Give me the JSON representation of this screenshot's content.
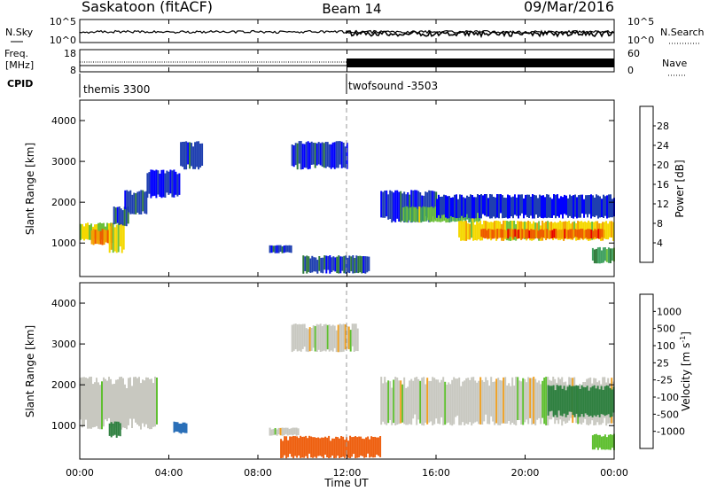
{
  "header": {
    "station": "Saskatoon (fitACF)",
    "beam": "Beam 14",
    "date": "09/Mar/2016"
  },
  "noise_panel": {
    "left_label": "N.Sky",
    "right_label": "N.Search",
    "left_ticks": [
      "10^5",
      "10^0"
    ],
    "right_ticks": [
      "10^5",
      "10^0"
    ]
  },
  "freq_panel": {
    "left_label_line1": "Freq.",
    "left_label_line2": "[MHz]",
    "right_label": "Nave",
    "left_ticks": [
      "18",
      "8"
    ],
    "right_ticks": [
      "60",
      "0"
    ]
  },
  "cpid": {
    "label": "CPID",
    "programs": [
      {
        "name": "themis 3300",
        "start_hour": 0
      },
      {
        "name": "twofsound -3503",
        "start_hour": 12
      }
    ]
  },
  "power_panel": {
    "ylabel": "Slant Range [km]",
    "yticks": [
      "1000",
      "2000",
      "3000",
      "4000"
    ],
    "colorbar_label": "Power [dB]",
    "colorbar_ticks": [
      "4",
      "8",
      "12",
      "16",
      "20",
      "24",
      "28"
    ],
    "colors": [
      "#0000ff",
      "#1f3fb0",
      "#2f7a3a",
      "#3fa060",
      "#6ec03a",
      "#f5d800",
      "#f2a000",
      "#ee5800",
      "#e80000"
    ]
  },
  "velocity_panel": {
    "ylabel": "Slant Range [km]",
    "yticks": [
      "1000",
      "2000",
      "3000",
      "4000"
    ],
    "colorbar_label": "Velocity [m s",
    "colorbar_superscript": "-1",
    "colorbar_label_end": "]",
    "colorbar_ticks": [
      "1000",
      "500",
      "100",
      "25",
      "-25",
      "-100",
      "-500",
      "-1000"
    ],
    "colors": [
      "#1c3fb0",
      "#2a6fb8",
      "#2f8040",
      "#5fbf30",
      "#c8c8c0",
      "#c8c8c0",
      "#f0a020",
      "#ee6010",
      "#e02000"
    ]
  },
  "xaxis": {
    "label": "Time UT",
    "ticks": [
      "00:00",
      "04:00",
      "08:00",
      "12:00",
      "16:00",
      "20:00",
      "00:00"
    ]
  },
  "chart_data": [
    {
      "type": "heatmap",
      "title": "Power [dB]",
      "xlabel": "",
      "ylabel": "Slant Range [km]",
      "xlim": [
        0,
        24
      ],
      "ylim": [
        180,
        4500
      ],
      "clim": [
        0,
        32
      ],
      "cells": [
        {
          "x": [
            0.0,
            1.5
          ],
          "y": [
            1050,
            1500
          ],
          "v": 18
        },
        {
          "x": [
            0.5,
            1.5
          ],
          "y": [
            950,
            1350
          ],
          "v": 24
        },
        {
          "x": [
            1.3,
            2.0
          ],
          "y": [
            750,
            1500
          ],
          "v": 20
        },
        {
          "x": [
            1.5,
            2.2
          ],
          "y": [
            1400,
            1900
          ],
          "v": 6
        },
        {
          "x": [
            2.0,
            3.0
          ],
          "y": [
            1700,
            2300
          ],
          "v": 5
        },
        {
          "x": [
            3.0,
            4.5
          ],
          "y": [
            2100,
            2800
          ],
          "v": 4
        },
        {
          "x": [
            4.5,
            5.5
          ],
          "y": [
            2800,
            3500
          ],
          "v": 5
        },
        {
          "x": [
            8.5,
            9.5
          ],
          "y": [
            750,
            950
          ],
          "v": 6
        },
        {
          "x": [
            9.5,
            12.0
          ],
          "y": [
            2800,
            3500
          ],
          "v": 5
        },
        {
          "x": [
            10.0,
            13.0
          ],
          "y": [
            250,
            700
          ],
          "v": 6
        },
        {
          "x": [
            13.5,
            16.0
          ],
          "y": [
            1500,
            2300
          ],
          "v": 5
        },
        {
          "x": [
            14.5,
            18.0
          ],
          "y": [
            1500,
            1900
          ],
          "v": 15
        },
        {
          "x": [
            16.0,
            24.0
          ],
          "y": [
            1600,
            2200
          ],
          "v": 4
        },
        {
          "x": [
            17.0,
            24.0
          ],
          "y": [
            1050,
            1550
          ],
          "v": 20
        },
        {
          "x": [
            18.0,
            23.5
          ],
          "y": [
            1100,
            1350
          ],
          "v": 26
        },
        {
          "x": [
            23.0,
            24.0
          ],
          "y": [
            500,
            900
          ],
          "v": 12
        }
      ]
    },
    {
      "type": "heatmap",
      "title": "Velocity [m s-1]",
      "xlabel": "Time UT",
      "ylabel": "Slant Range [km]",
      "xlim": [
        0,
        24
      ],
      "ylim": [
        180,
        4500
      ],
      "clim": [
        -1000,
        1000
      ],
      "cells": [
        {
          "x": [
            0.0,
            3.5
          ],
          "y": [
            900,
            2200
          ],
          "v": 0
        },
        {
          "x": [
            1.3,
            1.8
          ],
          "y": [
            700,
            1100
          ],
          "v": 150
        },
        {
          "x": [
            4.2,
            4.8
          ],
          "y": [
            800,
            1100
          ],
          "v": 600
        },
        {
          "x": [
            8.5,
            9.8
          ],
          "y": [
            750,
            950
          ],
          "v": 0
        },
        {
          "x": [
            9.5,
            12.5
          ],
          "y": [
            2800,
            3500
          ],
          "v": 0
        },
        {
          "x": [
            9.0,
            13.5
          ],
          "y": [
            200,
            750
          ],
          "v": -150
        },
        {
          "x": [
            13.5,
            24.0
          ],
          "y": [
            1000,
            2200
          ],
          "v": 0
        },
        {
          "x": [
            21.0,
            24.0
          ],
          "y": [
            1200,
            2000
          ],
          "v": 300
        },
        {
          "x": [
            23.0,
            24.0
          ],
          "y": [
            400,
            800
          ],
          "v": 60
        }
      ]
    }
  ]
}
